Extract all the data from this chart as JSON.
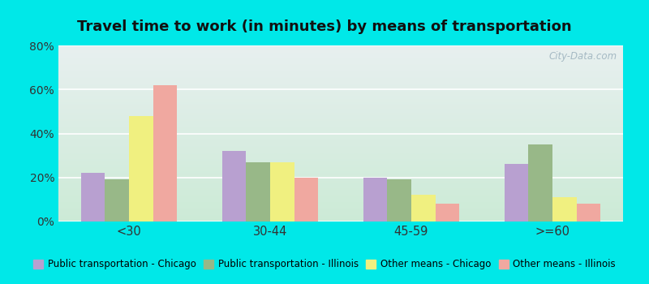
{
  "title": "Travel time to work (in minutes) by means of transportation",
  "categories": [
    "<30",
    "30-44",
    "45-59",
    ">=60"
  ],
  "series": {
    "Public transportation - Chicago": [
      22,
      32,
      20,
      26
    ],
    "Public transportation - Illinois": [
      19,
      27,
      19,
      35
    ],
    "Other means - Chicago": [
      48,
      27,
      12,
      11
    ],
    "Other means - Illinois": [
      62,
      20,
      8,
      8
    ]
  },
  "colors": {
    "Public transportation - Chicago": "#b8a0d0",
    "Public transportation - Illinois": "#98b888",
    "Other means - Chicago": "#f0f080",
    "Other means - Illinois": "#f0a8a0"
  },
  "ylim": [
    0,
    80
  ],
  "yticks": [
    0,
    20,
    40,
    60,
    80
  ],
  "ytick_labels": [
    "0%",
    "20%",
    "40%",
    "60%",
    "80%"
  ],
  "outer_background": "#00e8e8",
  "watermark": "City-Data.com",
  "bar_width": 0.17,
  "title_fontsize": 13,
  "legend_fontsize": 8.5
}
